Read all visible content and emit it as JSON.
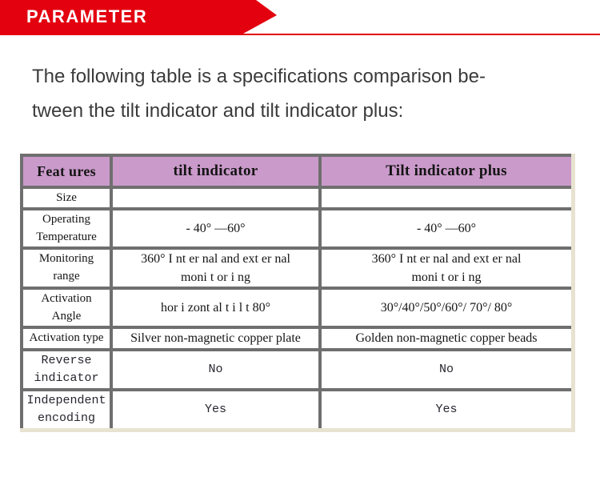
{
  "banner": {
    "label": "PARAMETER",
    "bg_color": "#e3000f",
    "text_color": "#ffffff"
  },
  "intro": {
    "text": "The following table is a specifications comparison be-\ntween the tilt indicator and tilt indicator plus:"
  },
  "table": {
    "columns": [
      "Feat ures",
      "tilt indicator",
      "Tilt  indicator plus"
    ],
    "header_bg_color": "#ca9aca",
    "border_dark_color": "#6f6f6f",
    "border_light_color": "#e8e3d1",
    "rows": [
      {
        "feature": "Size",
        "tilt": "",
        "plus": ""
      },
      {
        "feature": "Operating\nTemperature",
        "tilt": "- 40° —60°",
        "plus": "- 40°  —60°"
      },
      {
        "feature": "Monitoring\nrange",
        "tilt": "360° I nt er nal and ext er nal\nmoni t or i ng",
        "plus": "360° I nt er nal and ext er nal\nmoni t or i ng"
      },
      {
        "feature": "Activation\nAngle",
        "tilt": "hor i zont al  t i l t 80°",
        "plus": "30°/40°/50°/60°/ 70°/ 80°"
      },
      {
        "feature": "Activation type",
        "tilt": "Silver non-magnetic copper plate",
        "plus": "Golden non-magnetic copper beads"
      },
      {
        "feature": "Reverse\nindicator",
        "tilt": "No",
        "plus": "No"
      },
      {
        "feature": "Independent\nencoding",
        "tilt": "Yes",
        "plus": "Yes"
      }
    ]
  }
}
